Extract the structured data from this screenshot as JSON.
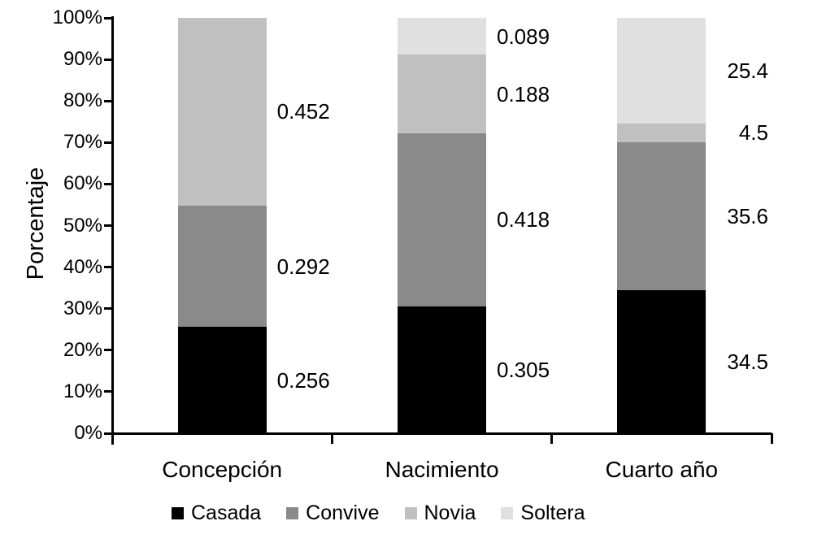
{
  "chart_data": {
    "type": "bar",
    "stacked": true,
    "normalized_100_percent": true,
    "title": "",
    "xlabel": "",
    "ylabel": "Porcentaje",
    "grid": false,
    "legend_position": "bottom",
    "y_axis": {
      "min": 0,
      "max": 1,
      "tick_labels": [
        "0%",
        "10%",
        "20%",
        "30%",
        "40%",
        "50%",
        "60%",
        "70%",
        "80%",
        "90%",
        "100%"
      ]
    },
    "categories": [
      "Concepción",
      "Nacimiento",
      "Cuarto año"
    ],
    "series": [
      {
        "name": "Casada",
        "color": "#000000",
        "labels": [
          "0.256",
          "0.305",
          "34.5"
        ],
        "fractions": [
          0.256,
          0.305,
          0.345
        ]
      },
      {
        "name": "Convive",
        "color": "#8a8a8a",
        "labels": [
          "0.292",
          "0.418",
          "35.6"
        ],
        "fractions": [
          0.292,
          0.418,
          0.356
        ]
      },
      {
        "name": "Novia",
        "color": "#c0c0c0",
        "labels": [
          "0.452",
          "0.188",
          "4.5"
        ],
        "fractions": [
          0.452,
          0.188,
          0.045
        ]
      },
      {
        "name": "Soltera",
        "color": "#e0e0e0",
        "labels": [
          "",
          "0.089",
          "25.4"
        ],
        "fractions": [
          0,
          0.089,
          0.254
        ]
      }
    ]
  }
}
